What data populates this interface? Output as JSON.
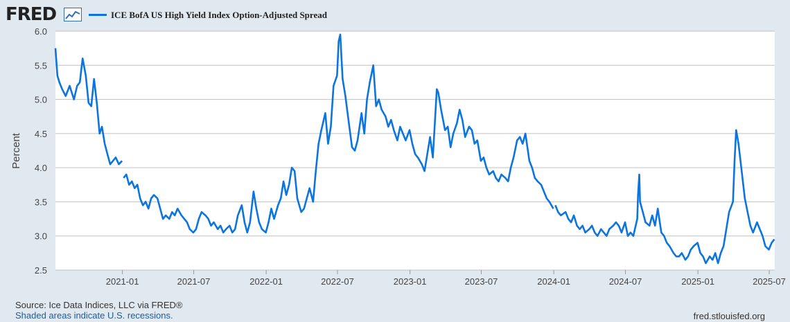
{
  "header": {
    "logo_text": "FRED",
    "legend_label": "ICE BofA US High Yield Index Option-Adjusted Spread"
  },
  "colors": {
    "series": "#0b74de",
    "background": "#e1e9f0",
    "plot_background": "#ffffff",
    "grid": "#c0c0c0"
  },
  "icons": {
    "logo_icon": "line-chart-icon"
  },
  "chart_data": {
    "type": "line",
    "title": "",
    "xlabel": "",
    "ylabel": "Percent",
    "ylim": [
      2.5,
      6.0
    ],
    "yticks": [
      "2.5",
      "3.0",
      "3.5",
      "4.0",
      "4.5",
      "5.0",
      "5.5",
      "6.0"
    ],
    "xlim": [
      "2020-07-15",
      "2025-07-15"
    ],
    "xticks": [
      "2021-01",
      "2021-07",
      "2022-01",
      "2022-07",
      "2023-01",
      "2023-07",
      "2024-01",
      "2024-07",
      "2025-01",
      "2025-07"
    ],
    "grid": true,
    "legend": "top-left",
    "series": [
      {
        "name": "ICE BofA US High Yield Index Option-Adjusted Spread",
        "color": "#0b74de",
        "segments": [
          {
            "x": [
              "2020-07-15",
              "2020-07-20",
              "2020-07-25",
              "2020-08-01",
              "2020-08-10",
              "2020-08-20",
              "2020-08-31",
              "2020-09-08",
              "2020-09-15",
              "2020-09-22",
              "2020-09-30",
              "2020-10-07",
              "2020-10-14",
              "2020-10-21",
              "2020-10-28",
              "2020-11-04",
              "2020-11-10",
              "2020-11-17",
              "2020-11-24",
              "2020-12-01",
              "2020-12-08",
              "2020-12-15",
              "2020-12-23",
              "2020-12-31"
            ],
            "y": [
              5.75,
              5.35,
              5.25,
              5.15,
              5.05,
              5.2,
              5.0,
              5.2,
              5.25,
              5.6,
              5.35,
              4.95,
              4.9,
              5.3,
              4.95,
              4.5,
              4.6,
              4.35,
              4.2,
              4.05,
              4.1,
              4.15,
              4.05,
              4.1
            ]
          },
          {
            "x": [
              "2021-01-04",
              "2021-01-11",
              "2021-01-18",
              "2021-01-25",
              "2021-02-01",
              "2021-02-08",
              "2021-02-15",
              "2021-02-22",
              "2021-03-01",
              "2021-03-08",
              "2021-03-15",
              "2021-03-22",
              "2021-03-31",
              "2021-04-07",
              "2021-04-14",
              "2021-04-21",
              "2021-04-30",
              "2021-05-07",
              "2021-05-14",
              "2021-05-21",
              "2021-05-31",
              "2021-06-07",
              "2021-06-14",
              "2021-06-21",
              "2021-06-30",
              "2021-07-07",
              "2021-07-14",
              "2021-07-21",
              "2021-07-31",
              "2021-08-07",
              "2021-08-14",
              "2021-08-21",
              "2021-08-31",
              "2021-09-07",
              "2021-09-14",
              "2021-09-21",
              "2021-09-30",
              "2021-10-07",
              "2021-10-14",
              "2021-10-21",
              "2021-10-31",
              "2021-11-07",
              "2021-11-14",
              "2021-11-21",
              "2021-11-30",
              "2021-12-07",
              "2021-12-14",
              "2021-12-21",
              "2021-12-31",
              "2022-01-07",
              "2022-01-14",
              "2022-01-21",
              "2022-01-31",
              "2022-02-07",
              "2022-02-14",
              "2022-02-21",
              "2022-02-28",
              "2022-03-07",
              "2022-03-14",
              "2022-03-21",
              "2022-03-31",
              "2022-04-07",
              "2022-04-14",
              "2022-04-21",
              "2022-04-30",
              "2022-05-07",
              "2022-05-14",
              "2022-05-21",
              "2022-05-31",
              "2022-06-07",
              "2022-06-14",
              "2022-06-21",
              "2022-06-30",
              "2022-07-04",
              "2022-07-08",
              "2022-07-14",
              "2022-07-21",
              "2022-07-31",
              "2022-08-07",
              "2022-08-14",
              "2022-08-21",
              "2022-08-31",
              "2022-09-07",
              "2022-09-14",
              "2022-09-21",
              "2022-09-30",
              "2022-10-07",
              "2022-10-14",
              "2022-10-21",
              "2022-10-31",
              "2022-11-07",
              "2022-11-14",
              "2022-11-21",
              "2022-11-30",
              "2022-12-07",
              "2022-12-14",
              "2022-12-21",
              "2022-12-31",
              "2023-01-07",
              "2023-01-14",
              "2023-01-21",
              "2023-01-31",
              "2023-02-07",
              "2023-02-14",
              "2023-02-21",
              "2023-02-28",
              "2023-03-07",
              "2023-03-10",
              "2023-03-14",
              "2023-03-21",
              "2023-03-31",
              "2023-04-07",
              "2023-04-14",
              "2023-04-21",
              "2023-04-30",
              "2023-05-07",
              "2023-05-14",
              "2023-05-21",
              "2023-05-31",
              "2023-06-07",
              "2023-06-14",
              "2023-06-21",
              "2023-06-30",
              "2023-07-07",
              "2023-07-14",
              "2023-07-21",
              "2023-07-31",
              "2023-08-07",
              "2023-08-14",
              "2023-08-21",
              "2023-08-31",
              "2023-09-07",
              "2023-09-14",
              "2023-09-21",
              "2023-09-30",
              "2023-10-07",
              "2023-10-14",
              "2023-10-21",
              "2023-10-31",
              "2023-11-07",
              "2023-11-14",
              "2023-11-21",
              "2023-11-30",
              "2023-12-07",
              "2023-12-14",
              "2023-12-21",
              "2023-12-31"
            ],
            "y": [
              3.85,
              3.9,
              3.75,
              3.8,
              3.7,
              3.75,
              3.55,
              3.45,
              3.5,
              3.4,
              3.55,
              3.6,
              3.55,
              3.4,
              3.25,
              3.3,
              3.25,
              3.35,
              3.3,
              3.4,
              3.3,
              3.25,
              3.2,
              3.1,
              3.05,
              3.1,
              3.25,
              3.35,
              3.3,
              3.25,
              3.15,
              3.2,
              3.1,
              3.15,
              3.05,
              3.1,
              3.15,
              3.05,
              3.1,
              3.3,
              3.45,
              3.2,
              3.05,
              3.2,
              3.65,
              3.4,
              3.2,
              3.1,
              3.05,
              3.2,
              3.4,
              3.25,
              3.45,
              3.55,
              3.8,
              3.6,
              3.75,
              4.0,
              3.95,
              3.55,
              3.35,
              3.4,
              3.55,
              3.7,
              3.5,
              3.95,
              4.35,
              4.55,
              4.8,
              4.35,
              4.6,
              5.2,
              5.35,
              5.85,
              5.95,
              5.3,
              5.05,
              4.6,
              4.3,
              4.25,
              4.4,
              4.8,
              4.5,
              5.0,
              5.25,
              5.5,
              4.9,
              5.0,
              4.85,
              4.75,
              4.6,
              4.7,
              4.55,
              4.4,
              4.6,
              4.5,
              4.4,
              4.55,
              4.35,
              4.2,
              4.15,
              4.05,
              3.95,
              4.2,
              4.45,
              4.15,
              4.85,
              5.15,
              5.1,
              4.85,
              4.55,
              4.6,
              4.3,
              4.5,
              4.65,
              4.85,
              4.7,
              4.45,
              4.6,
              4.55,
              4.35,
              4.4,
              4.1,
              4.15,
              4.0,
              3.9,
              3.95,
              3.85,
              3.8,
              3.9,
              3.85,
              3.8,
              4.0,
              4.15,
              4.4,
              4.45,
              4.35,
              4.5,
              4.1,
              4.0,
              3.85,
              3.8,
              3.75,
              3.65,
              3.55,
              3.5,
              3.4
            ]
          },
          {
            "x": [
              "2024-01-05",
              "2024-01-12",
              "2024-01-19",
              "2024-01-31",
              "2024-02-07",
              "2024-02-14",
              "2024-02-21",
              "2024-02-29",
              "2024-03-07",
              "2024-03-14",
              "2024-03-21",
              "2024-03-31",
              "2024-04-07",
              "2024-04-14",
              "2024-04-21",
              "2024-04-30",
              "2024-05-07",
              "2024-05-14",
              "2024-05-21",
              "2024-05-31",
              "2024-06-07",
              "2024-06-14",
              "2024-06-21",
              "2024-06-30",
              "2024-07-07",
              "2024-07-14",
              "2024-07-21",
              "2024-07-31",
              "2024-08-02",
              "2024-08-05",
              "2024-08-07",
              "2024-08-14",
              "2024-08-21",
              "2024-08-31",
              "2024-09-07",
              "2024-09-14",
              "2024-09-21",
              "2024-09-30",
              "2024-10-07",
              "2024-10-14",
              "2024-10-21",
              "2024-10-31",
              "2024-11-07",
              "2024-11-14",
              "2024-11-21",
              "2024-11-30",
              "2024-12-07",
              "2024-12-14",
              "2024-12-21",
              "2024-12-31",
              "2025-01-07",
              "2025-01-14",
              "2025-01-21",
              "2025-01-31",
              "2025-02-07",
              "2025-02-14",
              "2025-02-21",
              "2025-02-28",
              "2025-03-07",
              "2025-03-14",
              "2025-03-21",
              "2025-03-31",
              "2025-04-04",
              "2025-04-08",
              "2025-04-14",
              "2025-04-21",
              "2025-04-30",
              "2025-05-07",
              "2025-05-14",
              "2025-05-21",
              "2025-05-31",
              "2025-06-07",
              "2025-06-14",
              "2025-06-21",
              "2025-06-30",
              "2025-07-07",
              "2025-07-14"
            ],
            "y": [
              3.45,
              3.35,
              3.3,
              3.35,
              3.25,
              3.2,
              3.3,
              3.15,
              3.1,
              3.15,
              3.05,
              3.1,
              3.15,
              3.05,
              3.0,
              3.1,
              3.05,
              3.0,
              3.1,
              3.15,
              3.2,
              3.15,
              3.05,
              3.2,
              3.0,
              3.05,
              3.0,
              3.25,
              3.6,
              3.9,
              3.5,
              3.35,
              3.2,
              3.15,
              3.3,
              3.15,
              3.4,
              3.05,
              3.0,
              2.9,
              2.85,
              2.75,
              2.7,
              2.7,
              2.75,
              2.65,
              2.7,
              2.8,
              2.85,
              2.9,
              2.75,
              2.7,
              2.6,
              2.7,
              2.65,
              2.75,
              2.6,
              2.75,
              2.85,
              3.1,
              3.35,
              3.5,
              4.1,
              4.55,
              4.35,
              4.0,
              3.55,
              3.35,
              3.15,
              3.05,
              3.2,
              3.1,
              3.0,
              2.85,
              2.8,
              2.9,
              2.95
            ]
          }
        ]
      }
    ]
  },
  "footer": {
    "source": "Source: Ice Data Indices, LLC via FRED®",
    "recession_note": "Shaded areas indicate U.S. recessions.",
    "site": "fred.stlouisfed.org"
  }
}
